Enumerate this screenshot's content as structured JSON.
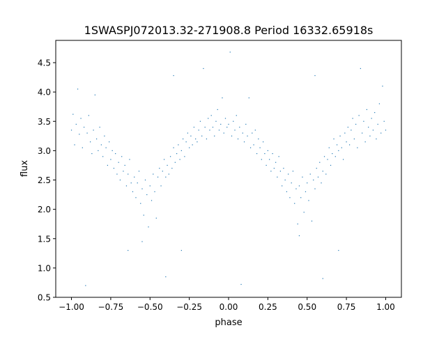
{
  "chart_data": {
    "type": "scatter",
    "title": "1SWASPJ072013.32-271908.8 Period 16332.65918s",
    "xlabel": "phase",
    "ylabel": "flux",
    "xlim": [
      -1.1,
      1.1
    ],
    "ylim": [
      0.5,
      4.88
    ],
    "xticks": [
      -1.0,
      -0.75,
      -0.5,
      -0.25,
      0.0,
      0.25,
      0.5,
      0.75,
      1.0
    ],
    "xtick_labels": [
      "−1.00",
      "−0.75",
      "−0.50",
      "−0.25",
      "0.00",
      "0.25",
      "0.50",
      "0.75",
      "1.00"
    ],
    "yticks": [
      0.5,
      1.0,
      1.5,
      2.0,
      2.5,
      3.0,
      3.5,
      4.0,
      4.5
    ],
    "ytick_labels": [
      "0.5",
      "1.0",
      "1.5",
      "2.0",
      "2.5",
      "3.0",
      "3.5",
      "4.0",
      "4.5"
    ],
    "grid": false,
    "marker_color": "#1f77b4",
    "points": [
      [
        -1.0,
        3.35
      ],
      [
        -0.99,
        3.62
      ],
      [
        -0.98,
        3.1
      ],
      [
        -0.97,
        3.45
      ],
      [
        -0.96,
        4.05
      ],
      [
        -0.95,
        3.28
      ],
      [
        -0.94,
        3.55
      ],
      [
        -0.93,
        3.05
      ],
      [
        -0.92,
        3.4
      ],
      [
        -0.91,
        0.7
      ],
      [
        -0.9,
        3.3
      ],
      [
        -0.89,
        3.6
      ],
      [
        -0.88,
        3.15
      ],
      [
        -0.87,
        2.95
      ],
      [
        -0.86,
        3.35
      ],
      [
        -0.85,
        3.95
      ],
      [
        -0.84,
        3.2
      ],
      [
        -0.83,
        3.0
      ],
      [
        -0.82,
        3.4
      ],
      [
        -0.81,
        3.1
      ],
      [
        -0.8,
        2.9
      ],
      [
        -0.79,
        3.25
      ],
      [
        -0.78,
        3.05
      ],
      [
        -0.77,
        2.75
      ],
      [
        -0.76,
        3.15
      ],
      [
        -0.75,
        2.85
      ],
      [
        -0.74,
        3.0
      ],
      [
        -0.73,
        2.7
      ],
      [
        -0.72,
        2.95
      ],
      [
        -0.71,
        2.6
      ],
      [
        -0.7,
        2.8
      ],
      [
        -0.69,
        2.5
      ],
      [
        -0.68,
        2.9
      ],
      [
        -0.67,
        2.65
      ],
      [
        -0.66,
        2.75
      ],
      [
        -0.65,
        2.4
      ],
      [
        -0.64,
        2.6
      ],
      [
        -0.63,
        2.85
      ],
      [
        -0.62,
        2.45
      ],
      [
        -0.61,
        2.3
      ],
      [
        -0.6,
        2.55
      ],
      [
        -0.59,
        2.2
      ],
      [
        -0.58,
        2.45
      ],
      [
        -0.57,
        2.65
      ],
      [
        -0.56,
        2.1
      ],
      [
        -0.55,
        2.35
      ],
      [
        -0.54,
        1.9
      ],
      [
        -0.53,
        2.5
      ],
      [
        -0.52,
        2.25
      ],
      [
        -0.51,
        1.7
      ],
      [
        -0.5,
        2.4
      ],
      [
        -0.49,
        2.15
      ],
      [
        -0.48,
        2.6
      ],
      [
        -0.47,
        2.3
      ],
      [
        -0.46,
        1.85
      ],
      [
        -0.45,
        2.55
      ],
      [
        -0.44,
        2.7
      ],
      [
        -0.43,
        2.4
      ],
      [
        -0.42,
        2.65
      ],
      [
        -0.41,
        2.85
      ],
      [
        -0.4,
        2.55
      ],
      [
        -0.39,
        2.75
      ],
      [
        -0.38,
        2.6
      ],
      [
        -0.37,
        2.9
      ],
      [
        -0.36,
        2.7
      ],
      [
        -0.35,
        3.05
      ],
      [
        -0.34,
        2.8
      ],
      [
        -0.33,
        2.95
      ],
      [
        -0.32,
        3.1
      ],
      [
        -0.31,
        2.85
      ],
      [
        -0.3,
        3.0
      ],
      [
        -0.29,
        3.2
      ],
      [
        -0.28,
        2.9
      ],
      [
        -0.27,
        3.15
      ],
      [
        -0.26,
        3.3
      ],
      [
        -0.25,
        3.05
      ],
      [
        -0.24,
        3.25
      ],
      [
        -0.23,
        3.1
      ],
      [
        -0.22,
        3.4
      ],
      [
        -0.21,
        3.2
      ],
      [
        -0.2,
        3.15
      ],
      [
        -0.19,
        3.35
      ],
      [
        -0.18,
        3.5
      ],
      [
        -0.17,
        3.25
      ],
      [
        -0.16,
        4.4
      ],
      [
        -0.15,
        3.4
      ],
      [
        -0.14,
        3.2
      ],
      [
        -0.13,
        3.55
      ],
      [
        -0.12,
        3.35
      ],
      [
        -0.11,
        3.6
      ],
      [
        -0.1,
        3.4
      ],
      [
        -0.09,
        3.25
      ],
      [
        -0.08,
        3.5
      ],
      [
        -0.07,
        3.7
      ],
      [
        -0.06,
        3.35
      ],
      [
        -0.05,
        3.45
      ],
      [
        -0.04,
        3.9
      ],
      [
        -0.03,
        3.3
      ],
      [
        -0.02,
        3.55
      ],
      [
        -0.01,
        3.4
      ],
      [
        0.0,
        3.45
      ],
      [
        0.01,
        4.68
      ],
      [
        0.02,
        3.25
      ],
      [
        0.03,
        3.5
      ],
      [
        0.04,
        3.35
      ],
      [
        0.05,
        3.6
      ],
      [
        0.06,
        3.2
      ],
      [
        0.07,
        3.4
      ],
      [
        0.08,
        0.72
      ],
      [
        0.09,
        3.3
      ],
      [
        0.1,
        3.15
      ],
      [
        0.11,
        3.45
      ],
      [
        0.12,
        3.25
      ],
      [
        0.13,
        3.9
      ],
      [
        0.14,
        3.05
      ],
      [
        0.15,
        3.3
      ],
      [
        0.16,
        3.1
      ],
      [
        0.17,
        3.35
      ],
      [
        0.18,
        2.95
      ],
      [
        0.19,
        3.2
      ],
      [
        0.2,
        3.05
      ],
      [
        0.21,
        2.85
      ],
      [
        0.22,
        3.15
      ],
      [
        0.23,
        2.95
      ],
      [
        0.24,
        2.75
      ],
      [
        0.25,
        3.0
      ],
      [
        0.26,
        2.85
      ],
      [
        0.27,
        2.65
      ],
      [
        0.28,
        2.95
      ],
      [
        0.29,
        2.7
      ],
      [
        0.3,
        2.8
      ],
      [
        0.31,
        2.55
      ],
      [
        0.32,
        2.9
      ],
      [
        0.33,
        2.65
      ],
      [
        0.34,
        2.4
      ],
      [
        0.35,
        2.7
      ],
      [
        0.36,
        2.5
      ],
      [
        0.37,
        2.3
      ],
      [
        0.38,
        2.6
      ],
      [
        0.39,
        2.2
      ],
      [
        0.4,
        2.45
      ],
      [
        0.41,
        2.65
      ],
      [
        0.42,
        2.1
      ],
      [
        0.43,
        2.35
      ],
      [
        0.44,
        1.75
      ],
      [
        0.45,
        2.4
      ],
      [
        0.46,
        2.2
      ],
      [
        0.47,
        2.55
      ],
      [
        0.48,
        1.95
      ],
      [
        0.49,
        2.3
      ],
      [
        0.5,
        2.45
      ],
      [
        0.51,
        2.15
      ],
      [
        0.52,
        2.6
      ],
      [
        0.53,
        1.8
      ],
      [
        0.54,
        2.5
      ],
      [
        0.55,
        2.35
      ],
      [
        0.56,
        2.7
      ],
      [
        0.57,
        2.55
      ],
      [
        0.58,
        2.8
      ],
      [
        0.59,
        2.45
      ],
      [
        0.6,
        2.65
      ],
      [
        0.61,
        2.9
      ],
      [
        0.62,
        2.6
      ],
      [
        0.63,
        2.85
      ],
      [
        0.64,
        3.05
      ],
      [
        0.65,
        2.75
      ],
      [
        0.66,
        2.95
      ],
      [
        0.67,
        3.2
      ],
      [
        0.68,
        2.9
      ],
      [
        0.69,
        3.1
      ],
      [
        0.7,
        3.0
      ],
      [
        0.71,
        3.25
      ],
      [
        0.72,
        3.05
      ],
      [
        0.73,
        2.85
      ],
      [
        0.74,
        3.3
      ],
      [
        0.75,
        3.15
      ],
      [
        0.76,
        3.4
      ],
      [
        0.77,
        3.1
      ],
      [
        0.78,
        3.35
      ],
      [
        0.79,
        3.55
      ],
      [
        0.8,
        3.2
      ],
      [
        0.81,
        3.45
      ],
      [
        0.82,
        3.05
      ],
      [
        0.83,
        3.6
      ],
      [
        0.84,
        4.4
      ],
      [
        0.85,
        3.3
      ],
      [
        0.86,
        3.5
      ],
      [
        0.87,
        3.15
      ],
      [
        0.88,
        3.7
      ],
      [
        0.89,
        3.4
      ],
      [
        0.9,
        3.25
      ],
      [
        0.91,
        3.55
      ],
      [
        0.92,
        3.35
      ],
      [
        0.93,
        3.65
      ],
      [
        0.94,
        3.2
      ],
      [
        0.95,
        3.45
      ],
      [
        0.96,
        3.8
      ],
      [
        0.97,
        3.3
      ],
      [
        0.98,
        4.1
      ],
      [
        0.99,
        3.5
      ],
      [
        1.0,
        3.35
      ],
      [
        -0.55,
        1.45
      ],
      [
        -0.4,
        0.85
      ],
      [
        0.45,
        1.55
      ],
      [
        0.6,
        0.82
      ],
      [
        -0.3,
        1.3
      ],
      [
        0.7,
        1.3
      ],
      [
        -0.35,
        4.28
      ],
      [
        0.55,
        4.28
      ],
      [
        -0.64,
        1.3
      ]
    ]
  }
}
